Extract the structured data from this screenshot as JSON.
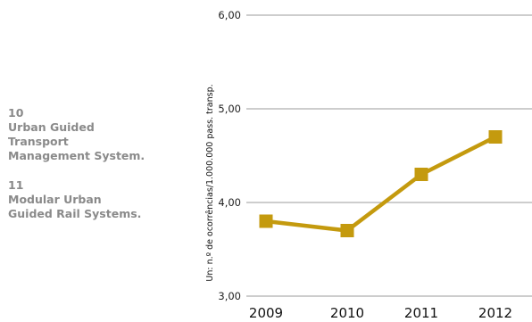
{
  "notes": [
    {
      "number": "10",
      "text": "Urban Guided\nTransport\nManagement System."
    },
    {
      "number": "11",
      "text": "Modular Urban\nGuided Rail Systems."
    }
  ],
  "chart_data": {
    "type": "line",
    "title": "",
    "xlabel": "",
    "ylabel": "Un: n.º de ocorrências/1.000.000 pass. transp.",
    "categories": [
      "2009",
      "2010",
      "2011",
      "2012"
    ],
    "series": [
      {
        "values": [
          3.8,
          3.7,
          4.3,
          4.7
        ],
        "color": "#c49a0e",
        "marker": "square"
      }
    ],
    "ylim": [
      3.0,
      6.0
    ],
    "yticks": [
      3.0,
      4.0,
      5.0,
      6.0
    ],
    "ytick_labels": [
      "3,00",
      "4,00",
      "5,00",
      "6,00"
    ],
    "grid": "horizontal",
    "legend": "none"
  }
}
